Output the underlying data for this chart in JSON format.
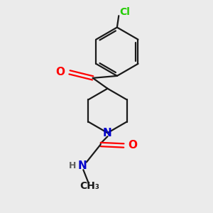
{
  "bg_color": "#ebebeb",
  "bond_color": "#1a1a1a",
  "atom_colors": {
    "O": "#ff0000",
    "N": "#0000cc",
    "Cl": "#22cc00",
    "H": "#606060",
    "C": "#1a1a1a"
  },
  "line_width": 1.6,
  "dbo": 0.1,
  "figsize": [
    3.0,
    3.0
  ],
  "dpi": 100
}
